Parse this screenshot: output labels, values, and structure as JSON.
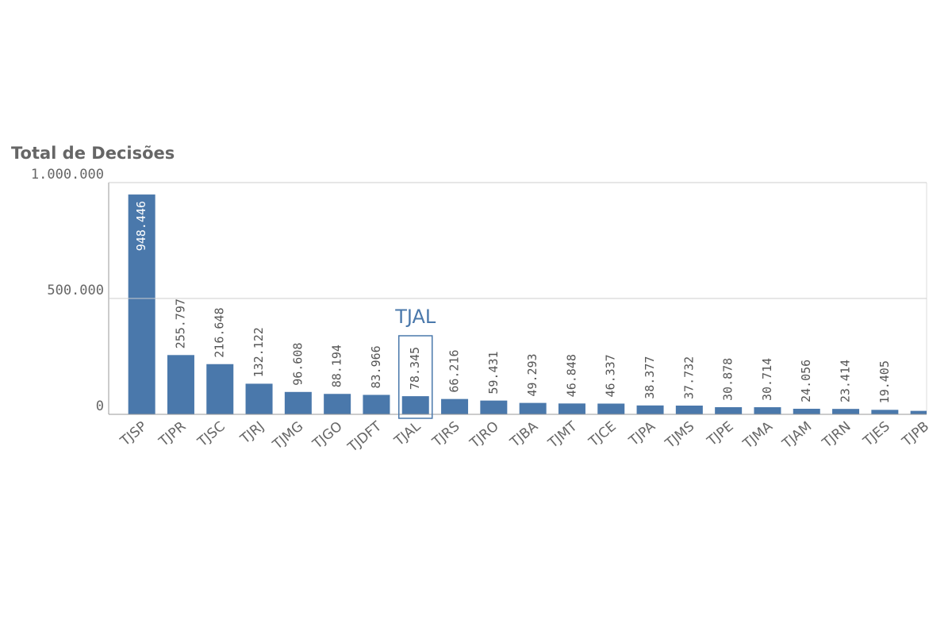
{
  "chart_data": {
    "type": "bar",
    "title": "Total de Decisões",
    "categories": [
      "TJSP",
      "TJPR",
      "TJSC",
      "TJRJ",
      "TJMG",
      "TJGO",
      "TJDFT",
      "TJAL",
      "TJRS",
      "TJRO",
      "TJBA",
      "TJMT",
      "TJCE",
      "TJPA",
      "TJMS",
      "TJPE",
      "TJMA",
      "TJAM",
      "TJRN",
      "TJES",
      "TJPB"
    ],
    "values": [
      948446,
      255797,
      216648,
      132122,
      96608,
      88194,
      83966,
      78345,
      66216,
      59431,
      49293,
      46848,
      46337,
      38377,
      37732,
      30878,
      30714,
      24056,
      23414,
      19405,
      15000
    ],
    "value_labels": [
      "948.446",
      "255.797",
      "216.648",
      "132.122",
      "96.608",
      "88.194",
      "83.966",
      "78.345",
      "66.216",
      "59.431",
      "49.293",
      "46.848",
      "46.337",
      "38.377",
      "37.732",
      "30.878",
      "30.714",
      "24.056",
      "23.414",
      "19.405",
      null
    ],
    "color": "#4a78ab",
    "ylim": [
      0,
      1000000
    ],
    "yticks": [
      0,
      {
        "value": 500000,
        "label": "500.000"
      },
      {
        "value": 1000000,
        "label": "1.000.000"
      }
    ],
    "grid": true,
    "annotation": "TJAL"
  }
}
